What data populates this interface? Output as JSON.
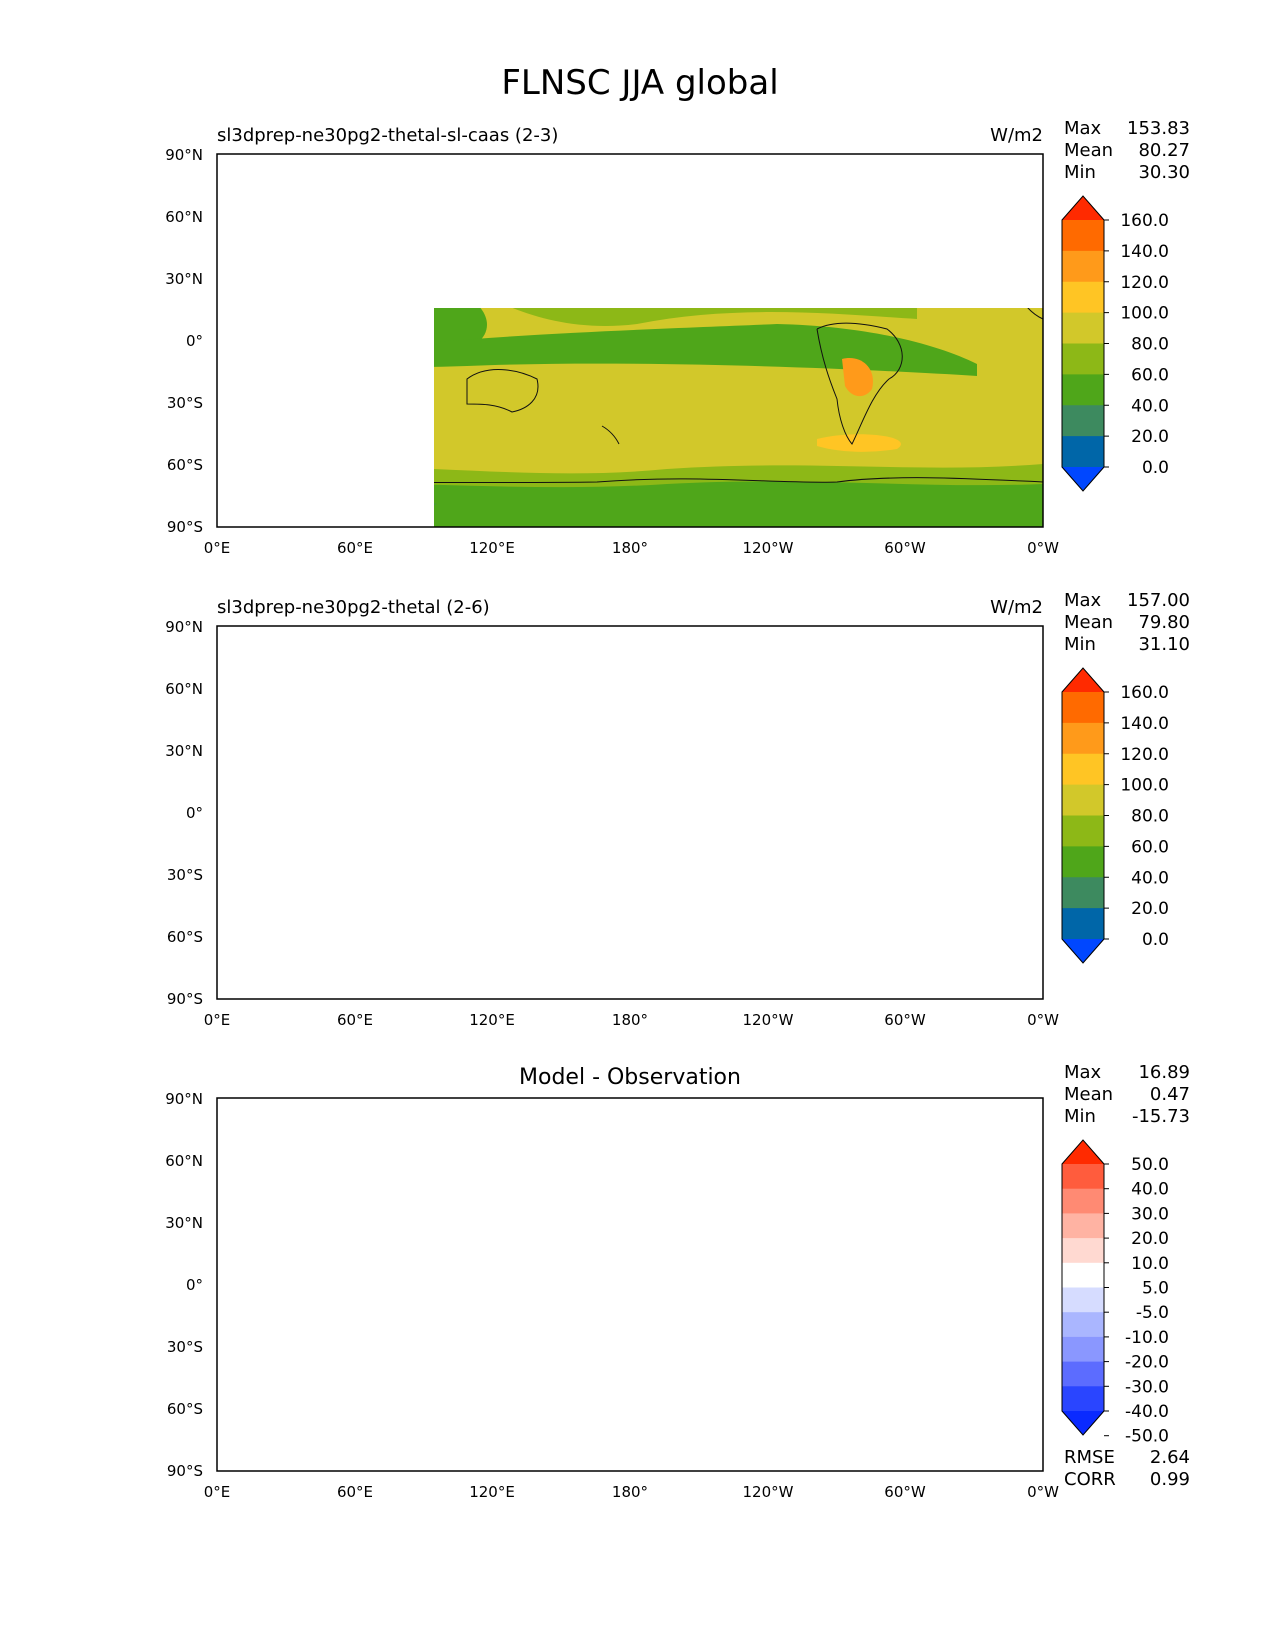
{
  "title": "FLNSC JJA global",
  "lat_labels": [
    "90°N",
    "60°N",
    "30°N",
    "0°",
    "30°S",
    "60°S",
    "90°S"
  ],
  "lon_labels": [
    "0°E",
    "60°E",
    "120°E",
    "180°",
    "120°W",
    "60°W",
    "0°W"
  ],
  "stat_labels": {
    "max": "Max",
    "mean": "Mean",
    "min": "Min",
    "rmse": "RMSE",
    "corr": "CORR"
  },
  "panels": [
    {
      "name": "test",
      "title_left": "sl3dprep-ne30pg2-thetal-sl-caas (2-3)",
      "units": "W/m2",
      "stats": {
        "max": "153.83",
        "mean": "80.27",
        "min": "30.30"
      },
      "colorbar_ticks": [
        "160.0",
        "140.0",
        "120.0",
        "100.0",
        "80.0",
        "60.0",
        "40.0",
        "20.0",
        "0.0"
      ]
    },
    {
      "name": "reference",
      "title_left": "sl3dprep-ne30pg2-thetal (2-6)",
      "units": "W/m2",
      "stats": {
        "max": "157.00",
        "mean": "79.80",
        "min": "31.10"
      },
      "colorbar_ticks": [
        "160.0",
        "140.0",
        "120.0",
        "100.0",
        "80.0",
        "60.0",
        "40.0",
        "20.0",
        "0.0"
      ]
    },
    {
      "name": "diff",
      "title_center": "Model - Observation",
      "stats": {
        "max": "16.89",
        "mean": "0.47",
        "min": "-15.73",
        "rmse": "2.64",
        "corr": "0.99"
      },
      "colorbar_ticks": [
        "50.0",
        "40.0",
        "30.0",
        "20.0",
        "10.0",
        "5.0",
        "-5.0",
        "-10.0",
        "-20.0",
        "-30.0",
        "-40.0",
        "-50.0"
      ]
    }
  ],
  "colors": {
    "main_scale": [
      "#ff2a00",
      "#ff6a00",
      "#ff9a1a",
      "#ffc524",
      "#d2c82a",
      "#8db817",
      "#4fa61a",
      "#3d8a5f",
      "#0066a8",
      "#0047ff"
    ],
    "diff_scale": [
      "#ff2a00",
      "#ff5c3d",
      "#ff8a73",
      "#ffb3a3",
      "#ffd9d1",
      "#ffffff",
      "#d6dcff",
      "#aab6ff",
      "#8a97ff",
      "#5c6cff",
      "#2a45ff",
      "#0a2aff"
    ]
  }
}
